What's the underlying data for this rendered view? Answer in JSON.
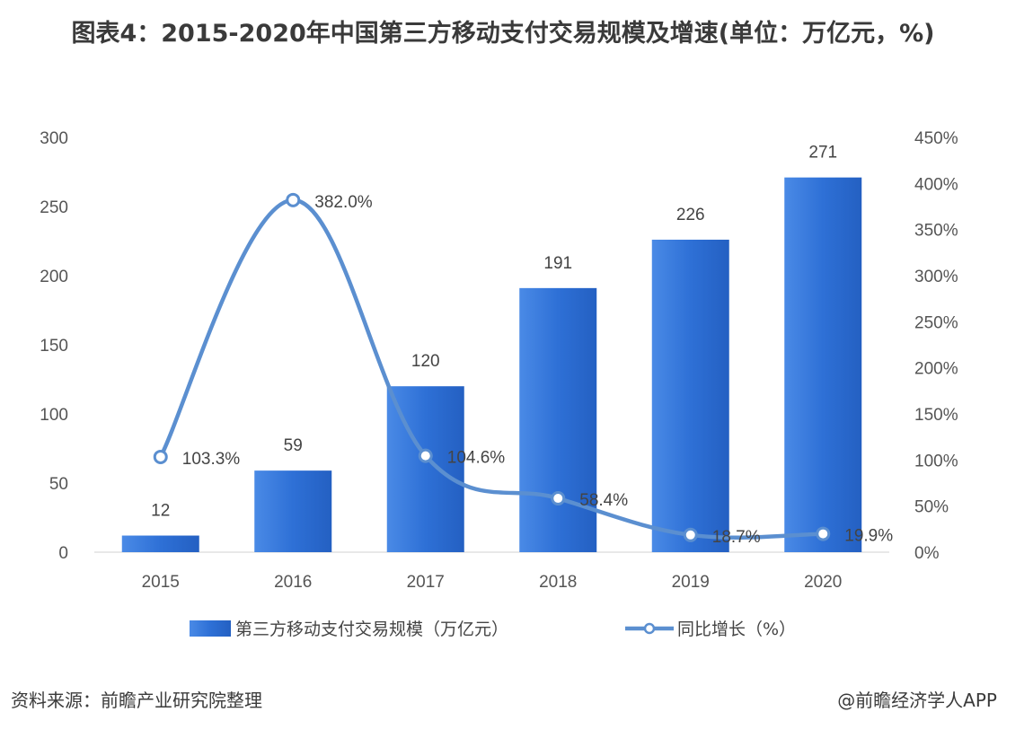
{
  "chart_data": {
    "type": "bar",
    "title": "图表4：2015-2020年中国第三方移动支付交易规模及增速(单位：万亿元，%)",
    "categories": [
      "2015",
      "2016",
      "2017",
      "2018",
      "2019",
      "2020"
    ],
    "series": [
      {
        "name": "第三方移动支付交易规模（万亿元）",
        "type": "bar",
        "axis": "left",
        "values": [
          12,
          59,
          120,
          191,
          226,
          271
        ],
        "value_labels": [
          "12",
          "59",
          "120",
          "191",
          "226",
          "271"
        ],
        "color": "#2f72d8"
      },
      {
        "name": "同比增长（%）",
        "type": "line",
        "axis": "right",
        "smooth": true,
        "values": [
          103.3,
          382.0,
          104.6,
          58.4,
          18.7,
          19.9
        ],
        "value_labels": [
          "103.3%",
          "382.0%",
          "104.6%",
          "58.4%",
          "18.7%",
          "19.9%"
        ],
        "color": "#5b8fd0"
      }
    ],
    "y_left": {
      "min": 0,
      "max": 300,
      "ticks": [
        "0",
        "50",
        "100",
        "150",
        "200",
        "250",
        "300"
      ]
    },
    "y_right": {
      "min": 0,
      "max": 450,
      "ticks": [
        "0%",
        "50%",
        "100%",
        "150%",
        "200%",
        "250%",
        "300%",
        "350%",
        "400%",
        "450%"
      ]
    },
    "grid": false,
    "legend_position": "bottom"
  },
  "footer": {
    "source": "资料来源：前瞻产业研究院整理",
    "credit": "@前瞻经济学人APP"
  }
}
